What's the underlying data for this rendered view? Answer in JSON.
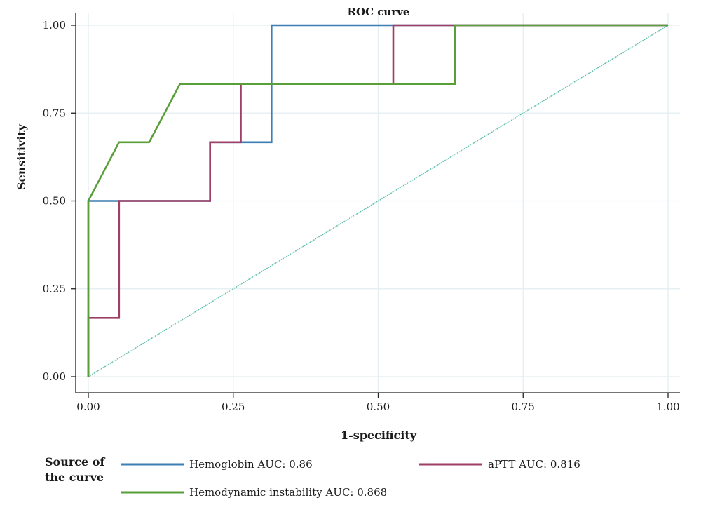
{
  "chart_data": {
    "type": "line",
    "title": "ROC curve",
    "xlabel": "1-specificity",
    "ylabel": "Sensitivity",
    "xlim": [
      0,
      1
    ],
    "ylim": [
      0,
      1
    ],
    "x_ticks": [
      "0.00",
      "0.25",
      "0.50",
      "0.75",
      "1.00"
    ],
    "y_ticks": [
      "0.00",
      "0.25",
      "0.50",
      "0.75",
      "1.00"
    ],
    "x_tick_values": [
      0,
      0.25,
      0.5,
      0.75,
      1
    ],
    "y_tick_values": [
      0,
      0.25,
      0.5,
      0.75,
      1
    ],
    "grid": true,
    "legend_position": "bottom",
    "legend_title": [
      "Source of",
      "the curve"
    ],
    "series": [
      {
        "name": "Hemoglobin AUC: 0.86",
        "color": "#3b7fb4",
        "points": [
          [
            0,
            0
          ],
          [
            0,
            0.5
          ],
          [
            0.053,
            0.5
          ],
          [
            0.053,
            0.5
          ],
          [
            0.21,
            0.5
          ],
          [
            0.21,
            0.667
          ],
          [
            0.263,
            0.667
          ],
          [
            0.316,
            0.667
          ],
          [
            0.316,
            1
          ],
          [
            0.526,
            1
          ],
          [
            0.632,
            1
          ],
          [
            1,
            1
          ]
        ]
      },
      {
        "name": "aPTT AUC: 0.816",
        "color": "#9e3f66",
        "points": [
          [
            0,
            0
          ],
          [
            0,
            0.167
          ],
          [
            0.053,
            0.167
          ],
          [
            0.053,
            0.5
          ],
          [
            0.21,
            0.5
          ],
          [
            0.21,
            0.667
          ],
          [
            0.263,
            0.667
          ],
          [
            0.263,
            0.833
          ],
          [
            0.526,
            0.833
          ],
          [
            0.526,
            1
          ],
          [
            1,
            1
          ]
        ]
      },
      {
        "name": "Hemodynamic instability AUC: 0.868",
        "color": "#5a9e3a",
        "points": [
          [
            0,
            0
          ],
          [
            0,
            0.5
          ],
          [
            0.053,
            0.667
          ],
          [
            0.105,
            0.667
          ],
          [
            0.158,
            0.833
          ],
          [
            0.632,
            0.833
          ],
          [
            0.632,
            1
          ],
          [
            1,
            1
          ]
        ]
      },
      {
        "name": "",
        "color": "#5fbfae",
        "dashed": true,
        "points": [
          [
            0,
            0
          ],
          [
            1,
            1
          ]
        ]
      }
    ]
  }
}
